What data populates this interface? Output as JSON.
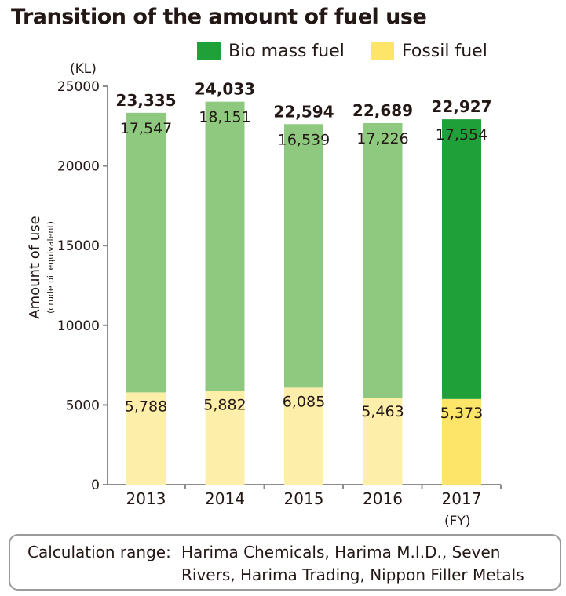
{
  "title": "Transition of the amount of fuel use",
  "legend": [
    {
      "label": "Bio mass fuel",
      "color": "#1fa038"
    },
    {
      "label": "Fossil fuel",
      "color": "#fde569"
    }
  ],
  "chart_data": {
    "type": "bar",
    "stacked": true,
    "title": "Transition of the amount of fuel use",
    "unit": "(KL)",
    "xunit": "(FY)",
    "ylabel": "Amount of use",
    "ylabel_sub": "(crude oil equivalent)",
    "ylim": [
      0,
      25000
    ],
    "yticks": [
      0,
      5000,
      10000,
      15000,
      20000,
      25000
    ],
    "categories": [
      "2013",
      "2014",
      "2015",
      "2016",
      "2017"
    ],
    "series": [
      {
        "name": "Fossil fuel",
        "values": [
          5788,
          5882,
          6085,
          5463,
          5373
        ],
        "labels": [
          "5,788",
          "5,882",
          "6,085",
          "5,463",
          "5,373"
        ],
        "colors": [
          "#fdeeaa",
          "#fdeeaa",
          "#fdeeaa",
          "#fdeeaa",
          "#fde569"
        ]
      },
      {
        "name": "Bio mass fuel",
        "values": [
          17547,
          18151,
          16539,
          17226,
          17554
        ],
        "labels": [
          "17,547",
          "18,151",
          "16,539",
          "17,226",
          "17,554"
        ],
        "colors": [
          "#8ec97f",
          "#8ec97f",
          "#8ec97f",
          "#8ec97f",
          "#1fa038"
        ]
      }
    ],
    "totals": [
      23335,
      24033,
      22594,
      22689,
      22927
    ],
    "total_labels": [
      "23,335",
      "24,033",
      "22,594",
      "22,689",
      "22,927"
    ],
    "axis_color": "#8c8c8c",
    "legend_position": "top-right",
    "grid": false
  },
  "note": {
    "label": "Calculation range:",
    "line1": "Harima Chemicals, Harima M.I.D., Seven",
    "line2": "Rivers, Harima Trading, Nippon Filler Metals"
  }
}
